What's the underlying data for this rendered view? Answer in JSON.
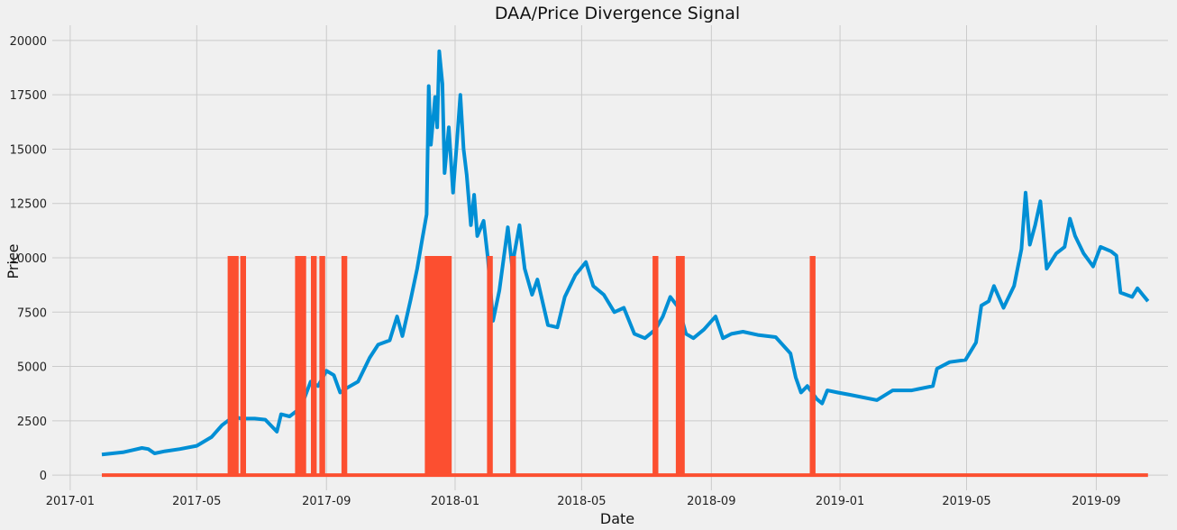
{
  "chart_data": {
    "type": "line",
    "title": "DAA/Price Divergence Signal",
    "xlabel": "Date",
    "ylabel": "Price",
    "grid": true,
    "legend": "none",
    "xlim": [
      "2016-12-15",
      "2019-11-08"
    ],
    "ylim": [
      -700,
      20700
    ],
    "x_ticks": [
      "2017-01-01",
      "2017-05-01",
      "2017-09-01",
      "2018-01-01",
      "2018-05-01",
      "2018-09-01",
      "2019-01-01",
      "2019-05-01",
      "2019-09-01"
    ],
    "x_tick_labels": [
      "2017-01",
      "2017-05",
      "2017-09",
      "2018-01",
      "2018-05",
      "2018-09",
      "2019-01",
      "2019-05",
      "2019-09"
    ],
    "y_ticks": [
      0,
      2500,
      5000,
      7500,
      10000,
      12500,
      15000,
      17500,
      20000
    ],
    "y_tick_labels": [
      "0",
      "2500",
      "5000",
      "7500",
      "10000",
      "12500",
      "15000",
      "17500",
      "20000"
    ],
    "series": [
      {
        "color": "#008fd5",
        "points": [
          [
            "2017-01-31",
            950
          ],
          [
            "2017-02-10",
            1000
          ],
          [
            "2017-02-20",
            1050
          ],
          [
            "2017-03-01",
            1150
          ],
          [
            "2017-03-10",
            1250
          ],
          [
            "2017-03-16",
            1200
          ],
          [
            "2017-03-22",
            1000
          ],
          [
            "2017-04-01",
            1100
          ],
          [
            "2017-04-15",
            1200
          ],
          [
            "2017-05-01",
            1350
          ],
          [
            "2017-05-15",
            1750
          ],
          [
            "2017-05-25",
            2300
          ],
          [
            "2017-06-05",
            2700
          ],
          [
            "2017-06-12",
            2600
          ],
          [
            "2017-06-25",
            2600
          ],
          [
            "2017-07-05",
            2550
          ],
          [
            "2017-07-16",
            2000
          ],
          [
            "2017-07-20",
            2800
          ],
          [
            "2017-07-28",
            2700
          ],
          [
            "2017-08-05",
            3000
          ],
          [
            "2017-08-10",
            3400
          ],
          [
            "2017-08-17",
            4300
          ],
          [
            "2017-08-24",
            4100
          ],
          [
            "2017-09-01",
            4800
          ],
          [
            "2017-09-08",
            4600
          ],
          [
            "2017-09-14",
            3800
          ],
          [
            "2017-09-20",
            4000
          ],
          [
            "2017-10-01",
            4300
          ],
          [
            "2017-10-12",
            5400
          ],
          [
            "2017-10-20",
            6000
          ],
          [
            "2017-10-31",
            6200
          ],
          [
            "2017-11-07",
            7300
          ],
          [
            "2017-11-12",
            6400
          ],
          [
            "2017-11-20",
            8100
          ],
          [
            "2017-11-26",
            9500
          ],
          [
            "2017-12-01",
            10900
          ],
          [
            "2017-12-05",
            12000
          ],
          [
            "2017-12-07",
            17900
          ],
          [
            "2017-12-09",
            15200
          ],
          [
            "2017-12-13",
            17400
          ],
          [
            "2017-12-15",
            16000
          ],
          [
            "2017-12-17",
            19500
          ],
          [
            "2017-12-20",
            18000
          ],
          [
            "2017-12-22",
            13900
          ],
          [
            "2017-12-26",
            16000
          ],
          [
            "2017-12-30",
            13000
          ],
          [
            "2018-01-03",
            15500
          ],
          [
            "2018-01-06",
            17500
          ],
          [
            "2018-01-09",
            15000
          ],
          [
            "2018-01-12",
            13800
          ],
          [
            "2018-01-16",
            11500
          ],
          [
            "2018-01-19",
            12900
          ],
          [
            "2018-01-22",
            11000
          ],
          [
            "2018-01-28",
            11700
          ],
          [
            "2018-02-01",
            10000
          ],
          [
            "2018-02-06",
            7100
          ],
          [
            "2018-02-12",
            8500
          ],
          [
            "2018-02-20",
            11400
          ],
          [
            "2018-02-24",
            9600
          ],
          [
            "2018-03-03",
            11500
          ],
          [
            "2018-03-08",
            9500
          ],
          [
            "2018-03-15",
            8300
          ],
          [
            "2018-03-20",
            9000
          ],
          [
            "2018-03-30",
            6900
          ],
          [
            "2018-04-08",
            6800
          ],
          [
            "2018-04-15",
            8200
          ],
          [
            "2018-04-25",
            9200
          ],
          [
            "2018-05-05",
            9800
          ],
          [
            "2018-05-12",
            8700
          ],
          [
            "2018-05-22",
            8300
          ],
          [
            "2018-06-01",
            7500
          ],
          [
            "2018-06-10",
            7700
          ],
          [
            "2018-06-20",
            6500
          ],
          [
            "2018-06-30",
            6300
          ],
          [
            "2018-07-10",
            6700
          ],
          [
            "2018-07-17",
            7300
          ],
          [
            "2018-07-24",
            8200
          ],
          [
            "2018-08-01",
            7700
          ],
          [
            "2018-08-08",
            6500
          ],
          [
            "2018-08-15",
            6300
          ],
          [
            "2018-08-25",
            6700
          ],
          [
            "2018-09-05",
            7300
          ],
          [
            "2018-09-12",
            6300
          ],
          [
            "2018-09-20",
            6500
          ],
          [
            "2018-10-01",
            6600
          ],
          [
            "2018-10-15",
            6450
          ],
          [
            "2018-11-01",
            6350
          ],
          [
            "2018-11-15",
            5600
          ],
          [
            "2018-11-20",
            4500
          ],
          [
            "2018-11-25",
            3800
          ],
          [
            "2018-12-01",
            4100
          ],
          [
            "2018-12-10",
            3500
          ],
          [
            "2018-12-15",
            3300
          ],
          [
            "2018-12-20",
            3900
          ],
          [
            "2018-12-30",
            3800
          ],
          [
            "2019-01-10",
            3700
          ],
          [
            "2019-02-05",
            3450
          ],
          [
            "2019-02-20",
            3900
          ],
          [
            "2019-03-10",
            3900
          ],
          [
            "2019-03-30",
            4100
          ],
          [
            "2019-04-03",
            4900
          ],
          [
            "2019-04-15",
            5200
          ],
          [
            "2019-04-30",
            5300
          ],
          [
            "2019-05-10",
            6100
          ],
          [
            "2019-05-15",
            7800
          ],
          [
            "2019-05-22",
            8000
          ],
          [
            "2019-05-27",
            8700
          ],
          [
            "2019-06-05",
            7700
          ],
          [
            "2019-06-15",
            8700
          ],
          [
            "2019-06-22",
            10400
          ],
          [
            "2019-06-26",
            13000
          ],
          [
            "2019-06-30",
            10600
          ],
          [
            "2019-07-05",
            11500
          ],
          [
            "2019-07-10",
            12600
          ],
          [
            "2019-07-16",
            9500
          ],
          [
            "2019-07-25",
            10200
          ],
          [
            "2019-08-02",
            10500
          ],
          [
            "2019-08-07",
            11800
          ],
          [
            "2019-08-12",
            11000
          ],
          [
            "2019-08-20",
            10200
          ],
          [
            "2019-08-29",
            9600
          ],
          [
            "2019-09-05",
            10500
          ],
          [
            "2019-09-15",
            10300
          ],
          [
            "2019-09-20",
            10100
          ],
          [
            "2019-09-24",
            8400
          ],
          [
            "2019-10-05",
            8200
          ],
          [
            "2019-10-10",
            8600
          ],
          [
            "2019-10-15",
            8300
          ],
          [
            "2019-10-20",
            8000
          ]
        ]
      },
      {
        "color": "#fc4f30",
        "baseline": 0,
        "peak": 10000,
        "start": "2017-01-31",
        "end": "2019-10-20",
        "spike_dates": [
          "2017-06-02",
          "2017-06-07",
          "2017-06-14",
          "2017-08-05",
          "2017-08-10",
          "2017-08-20",
          "2017-08-28",
          "2017-09-18",
          "2017-12-06",
          "2017-12-09",
          "2017-12-12",
          "2017-12-15",
          "2017-12-18",
          "2017-12-21",
          "2017-12-26",
          "2018-02-03",
          "2018-02-25",
          "2018-07-10",
          "2018-08-01",
          "2018-08-04",
          "2018-12-06"
        ]
      }
    ]
  }
}
